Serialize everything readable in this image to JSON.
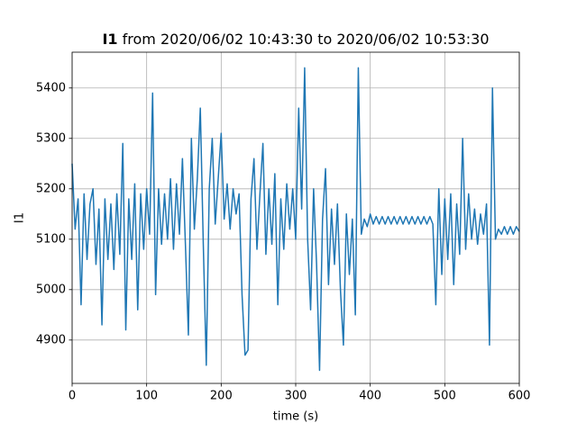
{
  "chart_data": {
    "type": "line",
    "title_parts": [
      "I1",
      "from 2020/06/02 10:43:30 to 2020/06/02 10:53:30"
    ],
    "x_label": "time (s)",
    "y_label": "I1",
    "xlim": [
      0,
      600
    ],
    "xticks": [
      0,
      100,
      200,
      300,
      400,
      500,
      600
    ],
    "ylim": [
      4814,
      5471
    ],
    "yticks": [
      4900,
      5000,
      5100,
      5200,
      5300,
      5400
    ],
    "grid": true,
    "x": [
      0,
      4,
      8,
      12,
      16,
      20,
      24,
      28,
      32,
      36,
      40,
      44,
      48,
      52,
      56,
      60,
      64,
      68,
      72,
      76,
      80,
      84,
      88,
      92,
      96,
      100,
      104,
      108,
      112,
      116,
      120,
      124,
      128,
      132,
      136,
      140,
      144,
      148,
      152,
      156,
      160,
      164,
      168,
      172,
      176,
      180,
      184,
      188,
      192,
      196,
      200,
      204,
      208,
      212,
      216,
      220,
      224,
      228,
      232,
      236,
      240,
      244,
      248,
      252,
      256,
      260,
      264,
      268,
      272,
      276,
      280,
      284,
      288,
      292,
      296,
      300,
      304,
      308,
      312,
      316,
      320,
      324,
      328,
      332,
      336,
      340,
      344,
      348,
      352,
      356,
      360,
      364,
      368,
      372,
      376,
      380,
      384,
      388,
      392,
      396,
      400,
      404,
      408,
      412,
      416,
      420,
      424,
      428,
      432,
      436,
      440,
      444,
      448,
      452,
      456,
      460,
      464,
      468,
      472,
      476,
      480,
      484,
      488,
      492,
      496,
      500,
      504,
      508,
      512,
      516,
      520,
      524,
      528,
      532,
      536,
      540,
      544,
      548,
      552,
      556,
      560,
      564,
      568,
      572,
      576,
      580,
      584,
      588,
      592,
      596,
      600
    ],
    "series": [
      {
        "name": "I1",
        "color": "#1f77b4",
        "values": [
          5250,
          5120,
          5180,
          4970,
          5190,
          5060,
          5170,
          5200,
          5050,
          5160,
          4930,
          5180,
          5060,
          5170,
          5040,
          5190,
          5070,
          5290,
          4920,
          5180,
          5060,
          5210,
          4960,
          5190,
          5080,
          5200,
          5110,
          5390,
          4990,
          5200,
          5090,
          5190,
          5100,
          5220,
          5080,
          5210,
          5110,
          5260,
          5090,
          4910,
          5300,
          5120,
          5220,
          5360,
          5090,
          4850,
          5200,
          5300,
          5130,
          5220,
          5310,
          5140,
          5210,
          5120,
          5200,
          5150,
          5190,
          4990,
          4870,
          4880,
          5180,
          5260,
          5080,
          5190,
          5290,
          5070,
          5200,
          5090,
          5230,
          4970,
          5180,
          5080,
          5210,
          5120,
          5200,
          5100,
          5360,
          5160,
          5440,
          5100,
          4960,
          5200,
          5050,
          4840,
          5140,
          5240,
          5010,
          5160,
          5050,
          5170,
          5000,
          4890,
          5150,
          5030,
          5140,
          4950,
          5440,
          5110,
          5140,
          5125,
          5150,
          5130,
          5145,
          5130,
          5145,
          5130,
          5145,
          5130,
          5145,
          5130,
          5145,
          5130,
          5145,
          5130,
          5145,
          5130,
          5145,
          5130,
          5145,
          5130,
          5145,
          5130,
          4970,
          5200,
          5030,
          5180,
          5060,
          5190,
          5010,
          5170,
          5070,
          5300,
          5080,
          5190,
          5100,
          5160,
          5090,
          5150,
          5110,
          5170,
          4890,
          5400,
          5100,
          5120,
          5110,
          5125,
          5110,
          5125,
          5110,
          5125,
          5115
        ]
      }
    ]
  }
}
